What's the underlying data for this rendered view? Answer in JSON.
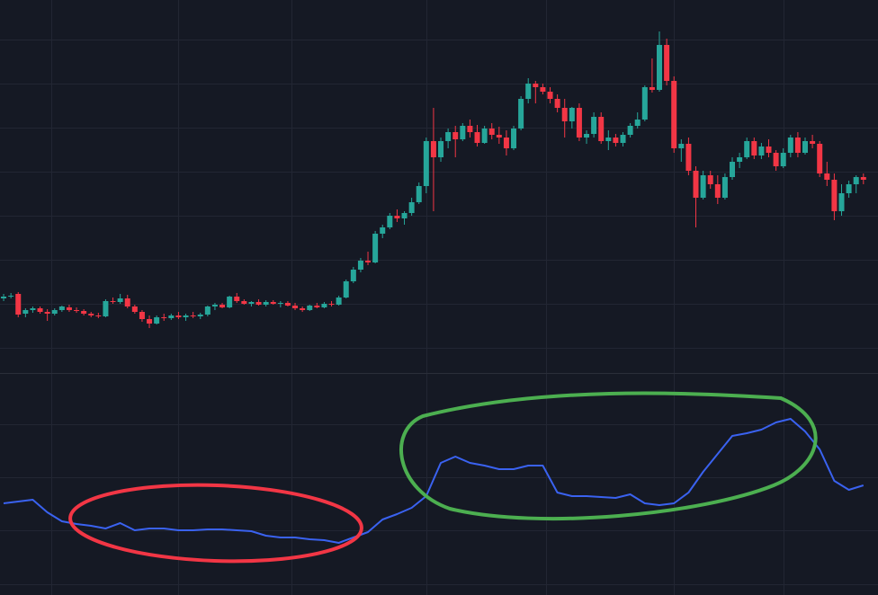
{
  "chart_data": [
    {
      "type": "candlestick",
      "up_color": "#26a69a",
      "down_color": "#f23645",
      "grid": true,
      "xlim": [
        -0.5,
        120
      ],
      "xticks": [
        6.5,
        24,
        39.5,
        58,
        74.5,
        92,
        107
      ],
      "ylim": [
        0,
        415
      ],
      "yticks": [
        28,
        77,
        126,
        175,
        224,
        273,
        322,
        371
      ],
      "ohlc": [
        [
          83,
          88,
          80,
          85
        ],
        [
          85,
          89,
          83,
          86
        ],
        [
          88,
          90,
          62,
          65
        ],
        [
          66,
          72,
          62,
          70
        ],
        [
          70,
          74,
          67,
          72
        ],
        [
          72,
          74,
          66,
          68
        ],
        [
          68,
          71,
          58,
          66
        ],
        [
          66,
          72,
          64,
          70
        ],
        [
          70,
          75,
          68,
          74
        ],
        [
          73,
          76,
          68,
          70
        ],
        [
          70,
          73,
          67,
          69
        ],
        [
          69,
          71,
          64,
          66
        ],
        [
          66,
          68,
          62,
          64
        ],
        [
          64,
          67,
          61,
          63
        ],
        [
          63,
          82,
          62,
          80
        ],
        [
          80,
          84,
          77,
          79
        ],
        [
          79,
          88,
          77,
          83
        ],
        [
          83,
          87,
          72,
          74
        ],
        [
          74,
          76,
          66,
          68
        ],
        [
          68,
          70,
          57,
          60
        ],
        [
          60,
          64,
          50,
          55
        ],
        [
          55,
          64,
          54,
          62
        ],
        [
          62,
          66,
          58,
          61
        ],
        [
          61,
          66,
          59,
          64
        ],
        [
          64,
          68,
          60,
          62
        ],
        [
          62,
          66,
          58,
          64
        ],
        [
          64,
          68,
          61,
          63
        ],
        [
          63,
          67,
          60,
          65
        ],
        [
          65,
          75,
          63,
          74
        ],
        [
          74,
          78,
          70,
          76
        ],
        [
          76,
          78,
          72,
          73
        ],
        [
          73,
          86,
          72,
          85
        ],
        [
          85,
          89,
          78,
          80
        ],
        [
          80,
          82,
          76,
          77
        ],
        [
          77,
          80,
          74,
          79
        ],
        [
          79,
          82,
          75,
          76
        ],
        [
          76,
          81,
          74,
          79
        ],
        [
          79,
          81,
          76,
          77
        ],
        [
          77,
          80,
          73,
          78
        ],
        [
          78,
          80,
          74,
          75
        ],
        [
          75,
          78,
          70,
          72
        ],
        [
          72,
          74,
          68,
          70
        ],
        [
          70,
          76,
          69,
          75
        ],
        [
          75,
          78,
          72,
          73
        ],
        [
          73,
          79,
          72,
          77
        ],
        [
          77,
          80,
          74,
          76
        ],
        [
          76,
          86,
          75,
          84
        ],
        [
          84,
          104,
          83,
          102
        ],
        [
          102,
          118,
          100,
          115
        ],
        [
          115,
          128,
          112,
          125
        ],
        [
          125,
          135,
          120,
          123
        ],
        [
          123,
          158,
          122,
          155
        ],
        [
          155,
          165,
          150,
          162
        ],
        [
          162,
          178,
          160,
          175
        ],
        [
          175,
          182,
          168,
          172
        ],
        [
          172,
          180,
          165,
          178
        ],
        [
          178,
          195,
          175,
          190
        ],
        [
          190,
          212,
          188,
          208
        ],
        [
          208,
          262,
          200,
          258
        ],
        [
          258,
          295,
          180,
          240
        ],
        [
          240,
          262,
          235,
          258
        ],
        [
          258,
          272,
          250,
          268
        ],
        [
          268,
          275,
          240,
          260
        ],
        [
          260,
          278,
          258,
          275
        ],
        [
          275,
          282,
          262,
          268
        ],
        [
          268,
          276,
          252,
          256
        ],
        [
          256,
          275,
          255,
          272
        ],
        [
          272,
          278,
          260,
          265
        ],
        [
          265,
          274,
          255,
          262
        ],
        [
          262,
          270,
          242,
          250
        ],
        [
          250,
          275,
          248,
          272
        ],
        [
          272,
          308,
          270,
          305
        ],
        [
          305,
          328,
          300,
          322
        ],
        [
          322,
          325,
          300,
          318
        ],
        [
          318,
          322,
          310,
          313
        ],
        [
          313,
          318,
          300,
          305
        ],
        [
          305,
          310,
          290,
          295
        ],
        [
          295,
          305,
          262,
          280
        ],
        [
          280,
          296,
          272,
          295
        ],
        [
          295,
          300,
          258,
          262
        ],
        [
          262,
          270,
          255,
          266
        ],
        [
          266,
          290,
          262,
          285
        ],
        [
          285,
          290,
          255,
          258
        ],
        [
          258,
          270,
          248,
          262
        ],
        [
          262,
          266,
          252,
          256
        ],
        [
          256,
          268,
          252,
          265
        ],
        [
          265,
          278,
          262,
          275
        ],
        [
          275,
          290,
          272,
          282
        ],
        [
          282,
          320,
          280,
          318
        ],
        [
          318,
          350,
          312,
          315
        ],
        [
          315,
          380,
          313,
          365
        ],
        [
          365,
          372,
          320,
          325
        ],
        [
          325,
          330,
          245,
          250
        ],
        [
          250,
          260,
          235,
          255
        ],
        [
          255,
          262,
          220,
          225
        ],
        [
          225,
          230,
          162,
          195
        ],
        [
          195,
          225,
          193,
          220
        ],
        [
          220,
          225,
          205,
          210
        ],
        [
          210,
          220,
          188,
          195
        ],
        [
          195,
          222,
          193,
          218
        ],
        [
          218,
          240,
          215,
          235
        ],
        [
          235,
          245,
          228,
          240
        ],
        [
          240,
          262,
          238,
          258
        ],
        [
          258,
          262,
          238,
          242
        ],
        [
          242,
          256,
          238,
          252
        ],
        [
          252,
          260,
          240,
          245
        ],
        [
          245,
          248,
          225,
          230
        ],
        [
          230,
          250,
          228,
          245
        ],
        [
          245,
          265,
          240,
          262
        ],
        [
          262,
          268,
          240,
          245
        ],
        [
          245,
          262,
          243,
          258
        ],
        [
          258,
          265,
          250,
          255
        ],
        [
          255,
          258,
          218,
          222
        ],
        [
          222,
          235,
          208,
          215
        ],
        [
          215,
          222,
          170,
          180
        ],
        [
          180,
          210,
          175,
          200
        ],
        [
          200,
          214,
          195,
          210
        ],
        [
          210,
          220,
          200,
          218
        ],
        [
          218,
          222,
          210,
          215
        ]
      ]
    },
    {
      "type": "line",
      "color": "#3a62f0",
      "grid": true,
      "xlim": [
        -0.5,
        120
      ],
      "xticks": [
        6.5,
        24,
        39.5,
        58,
        74.5,
        92,
        107
      ],
      "ylim": [
        0,
        247
      ],
      "yticks": [
        12,
        72,
        131,
        190
      ],
      "x": [
        0,
        2,
        4,
        6,
        8,
        10,
        12,
        14,
        16,
        18,
        20,
        22,
        24,
        26,
        28,
        30,
        32,
        34,
        36,
        38,
        40,
        42,
        44,
        46,
        48,
        50,
        52,
        54,
        56,
        58,
        60,
        62,
        64,
        66,
        68,
        70,
        72,
        74,
        76,
        78,
        80,
        82,
        84,
        86,
        88,
        90,
        92,
        94,
        96,
        98,
        100,
        102,
        104,
        106,
        108,
        110,
        112,
        114,
        116,
        118
      ],
      "values": [
        102,
        104,
        106,
        92,
        82,
        79,
        77,
        74,
        80,
        72,
        74,
        74,
        72,
        72,
        73,
        73,
        72,
        71,
        66,
        64,
        64,
        62,
        61,
        58,
        64,
        70,
        84,
        90,
        97,
        110,
        147,
        154,
        147,
        144,
        140,
        140,
        144,
        144,
        114,
        110,
        110,
        109,
        108,
        112,
        102,
        100,
        102,
        114,
        137,
        157,
        177,
        180,
        184,
        192,
        196,
        182,
        162,
        127,
        117,
        122
      ]
    }
  ]
}
